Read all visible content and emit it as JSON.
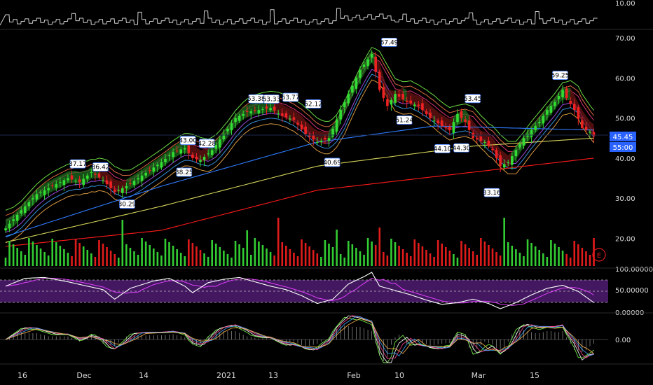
{
  "chart_data": {
    "type": "candlestick",
    "x_ticks": [
      "16",
      "Dec",
      "14",
      "2021",
      "13",
      "Feb",
      "10",
      "Mar",
      "15"
    ],
    "price_axis": {
      "ticks": [
        "70.00",
        "60.00",
        "50.00",
        "40.00",
        "30.00",
        "20.00"
      ],
      "ylim": [
        15,
        73
      ]
    },
    "volume_strip_axis": {
      "ticks": [
        "10.00"
      ]
    },
    "rsi_axis": {
      "ticks": [
        "100.00000",
        "50.00000",
        "0.00000"
      ],
      "ylim": [
        0,
        100
      ]
    },
    "macd_axis": {
      "ticks": [
        "0.00"
      ]
    },
    "current_price_tags": [
      "45.45",
      "55:00"
    ],
    "earnings_marker": "E",
    "callouts": [
      {
        "label": "37.17",
        "dir": "up"
      },
      {
        "label": "36.42",
        "dir": "up"
      },
      {
        "label": "30.29",
        "dir": "down"
      },
      {
        "label": "43.00",
        "dir": "up"
      },
      {
        "label": "42.28",
        "dir": "up"
      },
      {
        "label": "38.25",
        "dir": "down"
      },
      {
        "label": "53.38",
        "dir": "up"
      },
      {
        "label": "53.33",
        "dir": "up"
      },
      {
        "label": "53.77",
        "dir": "up"
      },
      {
        "label": "52.12",
        "dir": "up"
      },
      {
        "label": "40.69",
        "dir": "down"
      },
      {
        "label": "67.49",
        "dir": "up"
      },
      {
        "label": "51.24",
        "dir": "down"
      },
      {
        "label": "44.10",
        "dir": "down"
      },
      {
        "label": "44.30",
        "dir": "down"
      },
      {
        "label": "53.45",
        "dir": "up"
      },
      {
        "label": "33.16",
        "dir": "down"
      },
      {
        "label": "59.25",
        "dir": "up"
      }
    ],
    "close_path": [
      [
        0,
        22.5
      ],
      [
        4,
        27
      ],
      [
        8,
        31
      ],
      [
        12,
        33
      ],
      [
        16,
        35
      ],
      [
        19,
        34
      ],
      [
        22,
        36.5
      ],
      [
        25,
        34.5
      ],
      [
        28,
        31.5
      ],
      [
        31,
        33
      ],
      [
        34,
        35
      ],
      [
        37,
        37
      ],
      [
        40,
        39
      ],
      [
        43,
        41.5
      ],
      [
        46,
        42.5
      ],
      [
        48,
        40
      ],
      [
        50,
        39.5
      ],
      [
        53,
        42
      ],
      [
        56,
        46
      ],
      [
        59,
        50
      ],
      [
        62,
        51.5
      ],
      [
        65,
        52
      ],
      [
        68,
        52.5
      ],
      [
        71,
        50.5
      ],
      [
        74,
        49.5
      ],
      [
        77,
        46
      ],
      [
        80,
        44
      ],
      [
        83,
        45
      ],
      [
        86,
        52
      ],
      [
        89,
        58
      ],
      [
        91,
        62
      ],
      [
        94,
        66
      ],
      [
        96,
        57
      ],
      [
        98,
        53
      ],
      [
        100,
        56
      ],
      [
        103,
        54
      ],
      [
        106,
        53
      ],
      [
        109,
        50
      ],
      [
        112,
        48
      ],
      [
        114,
        47
      ],
      [
        116,
        51
      ],
      [
        118,
        49
      ],
      [
        120,
        45
      ],
      [
        123,
        44
      ],
      [
        125,
        42
      ],
      [
        127,
        38
      ],
      [
        129,
        39
      ],
      [
        131,
        42
      ],
      [
        133,
        45
      ],
      [
        135,
        47
      ],
      [
        137,
        49
      ],
      [
        139,
        52
      ],
      [
        141,
        54
      ],
      [
        143,
        57
      ],
      [
        144,
        55
      ],
      [
        146,
        52
      ],
      [
        148,
        47.5
      ],
      [
        150,
        46.5
      ],
      [
        151,
        45.45
      ]
    ],
    "moving_averages": [
      {
        "color": "#ff1a1a",
        "points": [
          [
            0,
            18
          ],
          [
            40,
            22
          ],
          [
            80,
            32
          ],
          [
            120,
            36.5
          ],
          [
            151,
            40
          ]
        ]
      },
      {
        "color": "#d4d45a",
        "points": [
          [
            0,
            19
          ],
          [
            40,
            28
          ],
          [
            80,
            38
          ],
          [
            120,
            43
          ],
          [
            151,
            45
          ]
        ]
      },
      {
        "color": "#2f7cff",
        "points": [
          [
            0,
            20.5
          ],
          [
            40,
            33
          ],
          [
            80,
            44
          ],
          [
            110,
            48
          ],
          [
            151,
            47
          ]
        ]
      }
    ],
    "rsi_line": [
      [
        0,
        60
      ],
      [
        5,
        78
      ],
      [
        10,
        80
      ],
      [
        15,
        72
      ],
      [
        20,
        62
      ],
      [
        25,
        52
      ],
      [
        28,
        30
      ],
      [
        32,
        55
      ],
      [
        38,
        72
      ],
      [
        42,
        78
      ],
      [
        46,
        60
      ],
      [
        48,
        45
      ],
      [
        52,
        68
      ],
      [
        56,
        76
      ],
      [
        60,
        80
      ],
      [
        64,
        70
      ],
      [
        68,
        60
      ],
      [
        72,
        52
      ],
      [
        76,
        38
      ],
      [
        80,
        20
      ],
      [
        84,
        30
      ],
      [
        88,
        65
      ],
      [
        92,
        82
      ],
      [
        94,
        92
      ],
      [
        96,
        60
      ],
      [
        100,
        50
      ],
      [
        104,
        40
      ],
      [
        108,
        28
      ],
      [
        112,
        18
      ],
      [
        116,
        22
      ],
      [
        120,
        30
      ],
      [
        124,
        20
      ],
      [
        127,
        8
      ],
      [
        131,
        22
      ],
      [
        135,
        40
      ],
      [
        139,
        55
      ],
      [
        143,
        62
      ],
      [
        147,
        48
      ],
      [
        151,
        22
      ]
    ]
  }
}
